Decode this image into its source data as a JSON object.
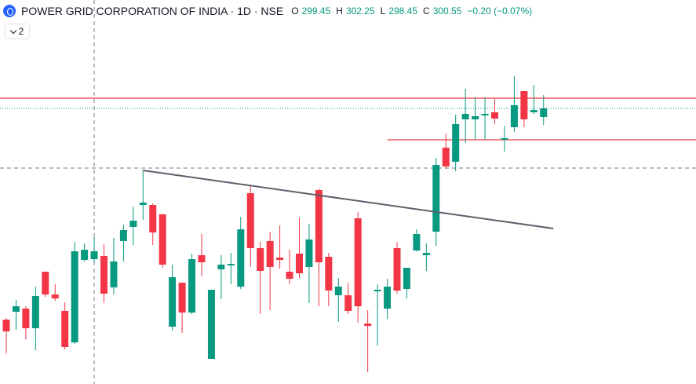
{
  "chart_data": {
    "type": "candlestick",
    "title": "POWER GRID CORPORATION OF INDIA · 1D · NSE",
    "ohlc_labels": [
      "O",
      "H",
      "L",
      "C"
    ],
    "change": "−0.20 (−0.07%)",
    "indicator_count": 2,
    "up_color": "#089981",
    "down_color": "#f23645",
    "ylim": [
      265.45,
      314.35
    ],
    "open": [
      273.65,
      274.65,
      275.05,
      272.55,
      279.75,
      276.85,
      274.75,
      270.75,
      281.25,
      281.35,
      281.75,
      277.75,
      283.65,
      285.45,
      288.25,
      288.25,
      287.05,
      272.75,
      278.35,
      274.55,
      281.85,
      268.65,
      280.05,
      280.55,
      277.85,
      289.75,
      282.75,
      283.65,
      281.55,
      279.75,
      282.05,
      280.35,
      290.15,
      281.65,
      276.75,
      276.75,
      286.55,
      273.15,
      277.25,
      275.05,
      282.75,
      277.55,
      282.45,
      281.85,
      284.85,
      295.55,
      293.75,
      299.15,
      299.15,
      299.65,
      300.05,
      296.55,
      298.15,
      302.75,
      300.05,
      299.45
    ],
    "high": [
      273.85,
      276.15,
      275.35,
      277.85,
      279.75,
      278.15,
      275.85,
      283.55,
      283.35,
      284.15,
      283.25,
      284.05,
      285.75,
      288.05,
      292.65,
      288.45,
      287.15,
      280.65,
      278.35,
      282.05,
      284.55,
      277.45,
      281.85,
      282.15,
      286.75,
      290.65,
      283.55,
      284.85,
      285.65,
      282.55,
      286.65,
      285.85,
      290.35,
      282.15,
      278.95,
      278.35,
      287.35,
      274.85,
      278.15,
      278.85,
      283.55,
      280.25,
      285.15,
      283.35,
      294.25,
      297.35,
      299.75,
      303.05,
      301.95,
      301.95,
      301.75,
      298.35,
      304.65,
      302.75,
      303.55,
      302.25
    ],
    "low": [
      269.35,
      272.35,
      271.15,
      269.75,
      276.55,
      276.05,
      269.85,
      270.55,
      281.05,
      280.85,
      275.75,
      276.85,
      281.05,
      283.15,
      286.35,
      283.15,
      280.25,
      272.25,
      271.95,
      274.35,
      279.15,
      268.65,
      276.25,
      278.15,
      277.55,
      280.35,
      274.35,
      274.85,
      280.15,
      278.15,
      278.95,
      275.75,
      275.35,
      275.35,
      273.35,
      274.35,
      273.25,
      266.95,
      270.35,
      273.75,
      276.95,
      276.35,
      282.35,
      279.85,
      283.05,
      292.85,
      292.55,
      296.15,
      296.55,
      296.55,
      298.55,
      295.05,
      297.55,
      298.15,
      299.85,
      298.45
    ],
    "close": [
      272.15,
      275.35,
      272.55,
      276.65,
      276.85,
      276.35,
      270.15,
      282.35,
      282.55,
      282.35,
      276.95,
      281.05,
      285.05,
      286.25,
      288.55,
      284.75,
      280.65,
      279.05,
      274.55,
      281.35,
      280.95,
      277.45,
      280.65,
      280.75,
      285.15,
      282.75,
      279.85,
      280.35,
      281.25,
      278.85,
      279.55,
      283.85,
      280.95,
      277.35,
      277.85,
      274.75,
      275.35,
      272.85,
      277.45,
      277.85,
      277.35,
      280.25,
      284.55,
      282.15,
      293.35,
      293.15,
      298.55,
      299.85,
      299.55,
      299.85,
      299.25,
      296.75,
      300.95,
      299.15,
      300.35,
      300.55
    ],
    "levels": [
      {
        "price": 301.85,
        "color": "#f05c63",
        "start_index": 0
      },
      {
        "price": 296.55,
        "color": "#f05c63",
        "start_index": 39
      }
    ],
    "trendline": {
      "start_index": 14,
      "start_price": 292.65,
      "end_index": 56,
      "end_price": 285.25,
      "color": "#5d606b"
    },
    "crosshair": {
      "index": 9,
      "price": 292.95
    }
  }
}
